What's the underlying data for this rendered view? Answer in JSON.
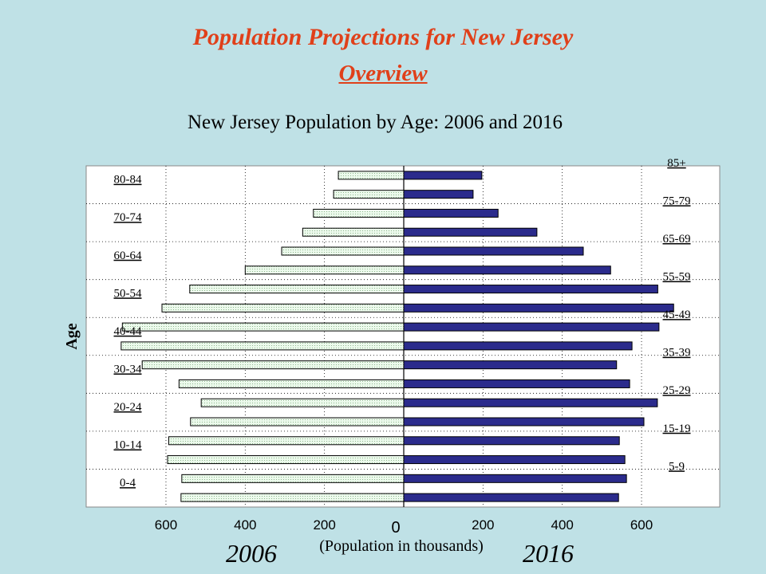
{
  "header": {
    "title": "Population Projections for New Jersey",
    "subtitle": "Overview"
  },
  "chart_data": {
    "type": "bar",
    "chart_subtype": "population-pyramid",
    "title": "New Jersey Population by Age: 2006 and 2016",
    "xlabel": "(Population in thousands)",
    "ylabel": "Age",
    "left_series_label": "2006",
    "right_series_label": "2016",
    "categories": [
      "0-4",
      "5-9",
      "10-14",
      "15-19",
      "20-24",
      "25-29",
      "30-34",
      "35-39",
      "40-44",
      "45-49",
      "50-54",
      "55-59",
      "60-64",
      "65-69",
      "70-74",
      "75-79",
      "80-84",
      "85+"
    ],
    "left_category_labels": [
      "0-4",
      "10-14",
      "20-24",
      "30-34",
      "40-44",
      "50-54",
      "60-64",
      "70-74",
      "80-84"
    ],
    "right_category_labels": [
      "5-9",
      "15-19",
      "25-29",
      "35-39",
      "45-49",
      "55-59",
      "65-69",
      "75-79",
      "85+"
    ],
    "series": [
      {
        "name": "2006",
        "side": "left",
        "color": "#e6f7e6",
        "values": [
          562,
          560,
          596,
          593,
          538,
          511,
          567,
          660,
          713,
          710,
          610,
          540,
          400,
          308,
          255,
          228,
          177,
          165
        ]
      },
      {
        "name": "2016",
        "side": "right",
        "color": "#2b2b8c",
        "values": [
          542,
          562,
          558,
          544,
          606,
          640,
          570,
          537,
          576,
          644,
          681,
          641,
          522,
          453,
          336,
          238,
          175,
          197
        ]
      }
    ],
    "xticks": [
      600,
      400,
      200,
      0,
      200,
      400,
      600
    ],
    "xlim": [
      -800,
      800
    ],
    "grid": "vertical and horizontal dotted"
  }
}
